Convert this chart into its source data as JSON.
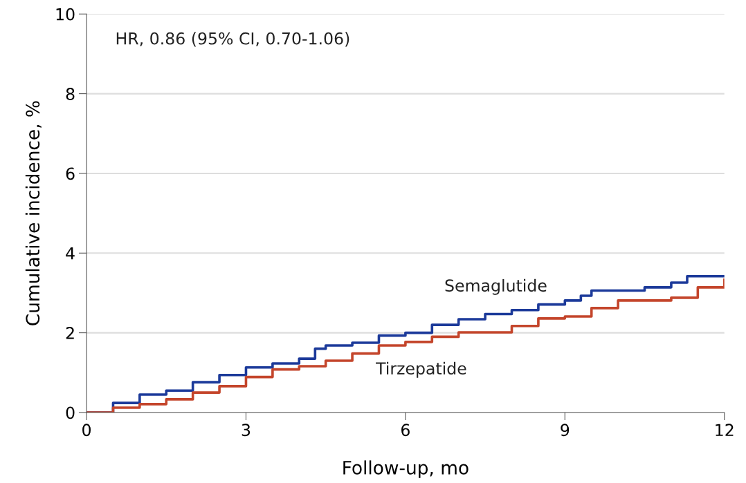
{
  "chart_data": {
    "type": "step",
    "xlabel": "Follow-up, mo",
    "ylabel": "Cumulative incidence, %",
    "annotations": [
      "HR, 0.86 (95% CI, 0.70-1.06)"
    ],
    "xlim": [
      0,
      12
    ],
    "xticks": [
      0,
      3,
      6,
      9,
      12
    ],
    "ylim": [
      0,
      10
    ],
    "yticks": [
      0,
      2,
      4,
      6,
      8,
      10
    ],
    "grid": "y",
    "legend": false,
    "series": [
      {
        "name": "Semaglutide",
        "color": "#1c3a9a",
        "x": [
          0,
          0.5,
          1,
          1.5,
          2,
          2.5,
          3,
          3.5,
          4,
          4.3,
          4.5,
          5,
          5.5,
          6,
          6.5,
          7,
          7.5,
          8,
          8.5,
          9,
          9.3,
          9.5,
          10,
          10.5,
          11,
          11.3,
          12
        ],
        "values": [
          0,
          0.24,
          0.45,
          0.55,
          0.76,
          0.94,
          1.13,
          1.23,
          1.35,
          1.6,
          1.68,
          1.75,
          1.93,
          2.0,
          2.2,
          2.34,
          2.47,
          2.57,
          2.71,
          2.81,
          2.93,
          3.06,
          3.06,
          3.14,
          3.26,
          3.42,
          3.42
        ]
      },
      {
        "name": "Tirzepatide",
        "color": "#c4452b",
        "x": [
          0,
          0.5,
          1,
          1.5,
          2,
          2.5,
          3,
          3.5,
          4,
          4.5,
          5,
          5.5,
          6,
          6.5,
          7,
          7.5,
          8,
          8.5,
          9,
          9.5,
          10,
          10.5,
          11,
          11.5,
          12
        ],
        "values": [
          0,
          0.12,
          0.21,
          0.33,
          0.5,
          0.66,
          0.89,
          1.08,
          1.16,
          1.3,
          1.48,
          1.68,
          1.77,
          1.9,
          2.01,
          2.01,
          2.17,
          2.36,
          2.41,
          2.62,
          2.81,
          2.81,
          2.88,
          3.14,
          3.33
        ]
      }
    ]
  }
}
